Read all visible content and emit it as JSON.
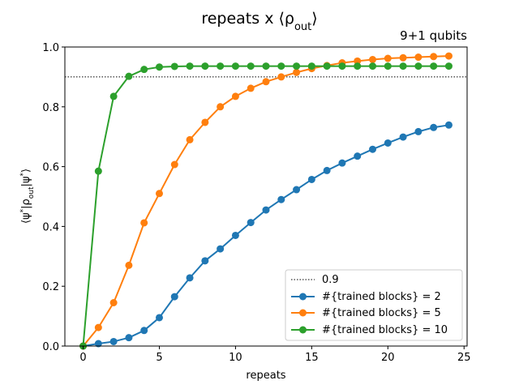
{
  "chart_data": {
    "type": "line",
    "title": "repeats x ⟨ρout⟩",
    "subtitle": "9+1 qubits",
    "xlabel": "repeats",
    "ylabel": "⟨ψ*|ρout|ψ*⟩",
    "xlim": [
      -1.2,
      25.2
    ],
    "ylim": [
      0,
      1
    ],
    "xticks": [
      0,
      5,
      10,
      15,
      20,
      25
    ],
    "yticks": [
      0.0,
      0.2,
      0.4,
      0.6,
      0.8,
      1.0
    ],
    "ytick_labels": [
      "0.0",
      "0.2",
      "0.4",
      "0.6",
      "0.8",
      "1.0"
    ],
    "legend_position": "lower right",
    "reference_line": {
      "name": "0.9",
      "y": 0.9,
      "style": "dotted",
      "color": "#000000"
    },
    "x": [
      0,
      1,
      2,
      3,
      4,
      5,
      6,
      7,
      8,
      9,
      10,
      11,
      12,
      13,
      14,
      15,
      16,
      17,
      18,
      19,
      20,
      21,
      22,
      23,
      24
    ],
    "series": [
      {
        "name": "#{trained blocks} = 2",
        "color": "#1f77b4",
        "values": [
          0.0,
          0.008,
          0.015,
          0.028,
          0.052,
          0.095,
          0.165,
          0.228,
          0.285,
          0.325,
          0.37,
          0.413,
          0.455,
          0.49,
          0.523,
          0.557,
          0.587,
          0.612,
          0.635,
          0.658,
          0.679,
          0.699,
          0.717,
          0.731,
          0.739
        ]
      },
      {
        "name": "#{trained blocks} = 5",
        "color": "#ff7f0e",
        "values": [
          0.0,
          0.062,
          0.145,
          0.27,
          0.412,
          0.51,
          0.607,
          0.69,
          0.748,
          0.8,
          0.835,
          0.862,
          0.884,
          0.9,
          0.915,
          0.928,
          0.938,
          0.947,
          0.953,
          0.958,
          0.962,
          0.964,
          0.966,
          0.968,
          0.97
        ]
      },
      {
        "name": "#{trained blocks} = 10",
        "color": "#2ca02c",
        "values": [
          0.0,
          0.585,
          0.835,
          0.902,
          0.925,
          0.933,
          0.935,
          0.936,
          0.936,
          0.936,
          0.936,
          0.936,
          0.936,
          0.936,
          0.936,
          0.936,
          0.936,
          0.936,
          0.936,
          0.936,
          0.936,
          0.936,
          0.936,
          0.936,
          0.936
        ]
      }
    ]
  }
}
